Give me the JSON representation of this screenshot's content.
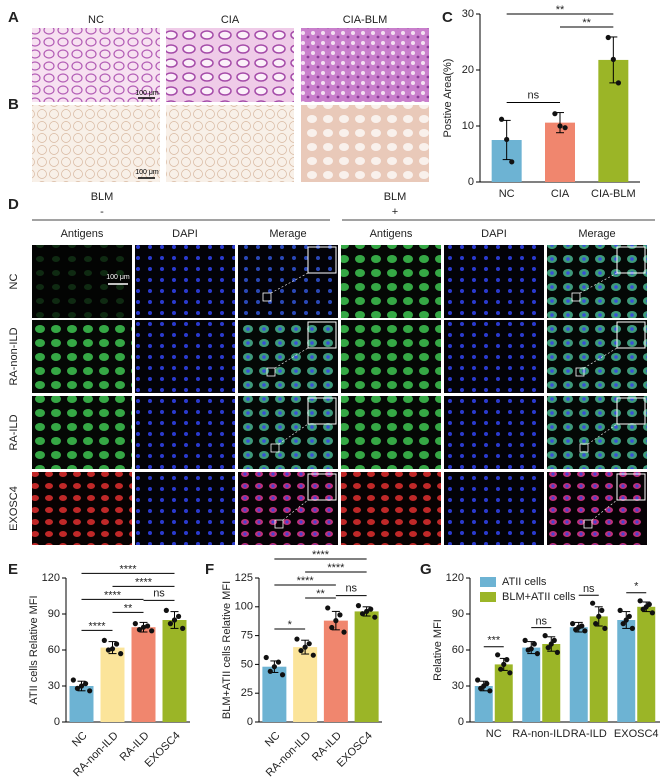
{
  "panel_labels": [
    "A",
    "B",
    "C",
    "D",
    "E",
    "F",
    "G"
  ],
  "panel_a": {
    "columns": [
      "NC",
      "CIA",
      "CIA-BLM"
    ],
    "scale_bar": "100 μm"
  },
  "panel_b": {
    "scale_bar": "100 μm"
  },
  "panel_d": {
    "groups": [
      {
        "title": "BLM",
        "sign": "-"
      },
      {
        "title": "BLM",
        "sign": "+"
      }
    ],
    "columns": [
      "Antigens",
      "DAPI",
      "Merage"
    ],
    "rows": [
      "NC",
      "RA-non-ILD",
      "RA-ILD",
      "EXOSC4"
    ],
    "scale_bar": "100 μm"
  },
  "chart_data": [
    {
      "type": "bar",
      "ylabel": "Postive Area(%)",
      "categories": [
        "NC",
        "CIA",
        "CIA-BLM"
      ],
      "values": [
        7.5,
        10.6,
        21.8
      ],
      "errors": [
        3.5,
        1.8,
        4.1
      ],
      "points": [
        [
          11.2,
          7.6,
          3.6
        ],
        [
          12.2,
          10,
          9.7
        ],
        [
          25.8,
          21.9,
          17.7
        ]
      ],
      "colors": [
        "#6db3d3",
        "#f0866e",
        "#9bb527"
      ],
      "ylim": [
        0,
        30
      ],
      "yticks": [
        0,
        10,
        20,
        30
      ],
      "comparisons": {
        "pairs": [
          [
            0,
            1
          ],
          [
            1,
            2
          ],
          [
            0,
            2
          ]
        ],
        "labels": [
          "ns",
          "**",
          "**"
        ]
      }
    },
    {
      "type": "bar",
      "ylabel": "ATII cells Relative MFI",
      "categories": [
        "NC",
        "RA-non-ILD",
        "RA-ILD",
        "EXOSC4"
      ],
      "values": [
        30,
        62,
        79,
        85
      ],
      "errors": [
        4,
        5,
        4,
        7
      ],
      "points": [
        [
          35,
          32,
          30,
          28,
          26
        ],
        [
          68,
          65,
          61,
          60,
          57
        ],
        [
          82,
          80,
          79,
          77,
          76
        ],
        [
          93,
          88,
          85,
          82,
          78
        ]
      ],
      "colors": [
        "#6db3d3",
        "#fbe49a",
        "#f0866e",
        "#9bb527"
      ],
      "ylim": [
        0,
        120
      ],
      "yticks": [
        0,
        30,
        60,
        90,
        120
      ],
      "comparisons": {
        "pairs": [
          [
            0,
            1
          ],
          [
            1,
            2
          ],
          [
            2,
            3
          ],
          [
            0,
            2
          ],
          [
            1,
            3
          ],
          [
            0,
            3
          ]
        ],
        "labels": [
          "****",
          "**",
          "ns",
          "****",
          "****",
          "****"
        ]
      }
    },
    {
      "type": "bar",
      "ylabel": "BLM+ATII cells Relative MFI",
      "categories": [
        "NC",
        "RA-non-ILD",
        "RA-ILD",
        "EXOSC4"
      ],
      "values": [
        48,
        65,
        88,
        96
      ],
      "errors": [
        5,
        6,
        8,
        4
      ],
      "points": [
        [
          56,
          52,
          48,
          44,
          41
        ],
        [
          72,
          68,
          65,
          62,
          58
        ],
        [
          99,
          93,
          88,
          82,
          78
        ],
        [
          101,
          98,
          96,
          94,
          91
        ]
      ],
      "colors": [
        "#6db3d3",
        "#fbe49a",
        "#f0866e",
        "#9bb527"
      ],
      "ylim": [
        0,
        125
      ],
      "yticks": [
        0,
        25,
        50,
        75,
        100,
        125
      ],
      "comparisons": {
        "pairs": [
          [
            0,
            1
          ],
          [
            1,
            2
          ],
          [
            2,
            3
          ],
          [
            0,
            2
          ],
          [
            1,
            3
          ],
          [
            0,
            3
          ]
        ],
        "labels": [
          "*",
          "**",
          "ns",
          "****",
          "****",
          "****"
        ]
      }
    },
    {
      "type": "grouped_bar",
      "ylabel": "Relative MFI",
      "categories": [
        "NC",
        "RA-non-ILD",
        "RA-ILD",
        "EXOSC4"
      ],
      "series": [
        {
          "name": "ATII cells",
          "color": "#6db3d3",
          "values": [
            30,
            62,
            79,
            85
          ],
          "errors": [
            4,
            5,
            4,
            7
          ],
          "points": [
            [
              35,
              32,
              30,
              28,
              26
            ],
            [
              68,
              65,
              61,
              60,
              57
            ],
            [
              82,
              80,
              79,
              77,
              76
            ],
            [
              93,
              88,
              85,
              82,
              78
            ]
          ]
        },
        {
          "name": "BLM+ATII cells",
          "color": "#9bb527",
          "values": [
            48,
            65,
            88,
            96
          ],
          "errors": [
            5,
            6,
            8,
            4
          ],
          "points": [
            [
              56,
              52,
              48,
              44,
              41
            ],
            [
              72,
              68,
              65,
              62,
              58
            ],
            [
              99,
              93,
              88,
              82,
              78
            ],
            [
              101,
              98,
              96,
              94,
              91
            ]
          ]
        }
      ],
      "significance": [
        "***",
        "ns",
        "ns",
        "*"
      ],
      "legend": "top-left",
      "ylim": [
        0,
        120
      ],
      "yticks": [
        0,
        30,
        60,
        90,
        120
      ]
    }
  ]
}
